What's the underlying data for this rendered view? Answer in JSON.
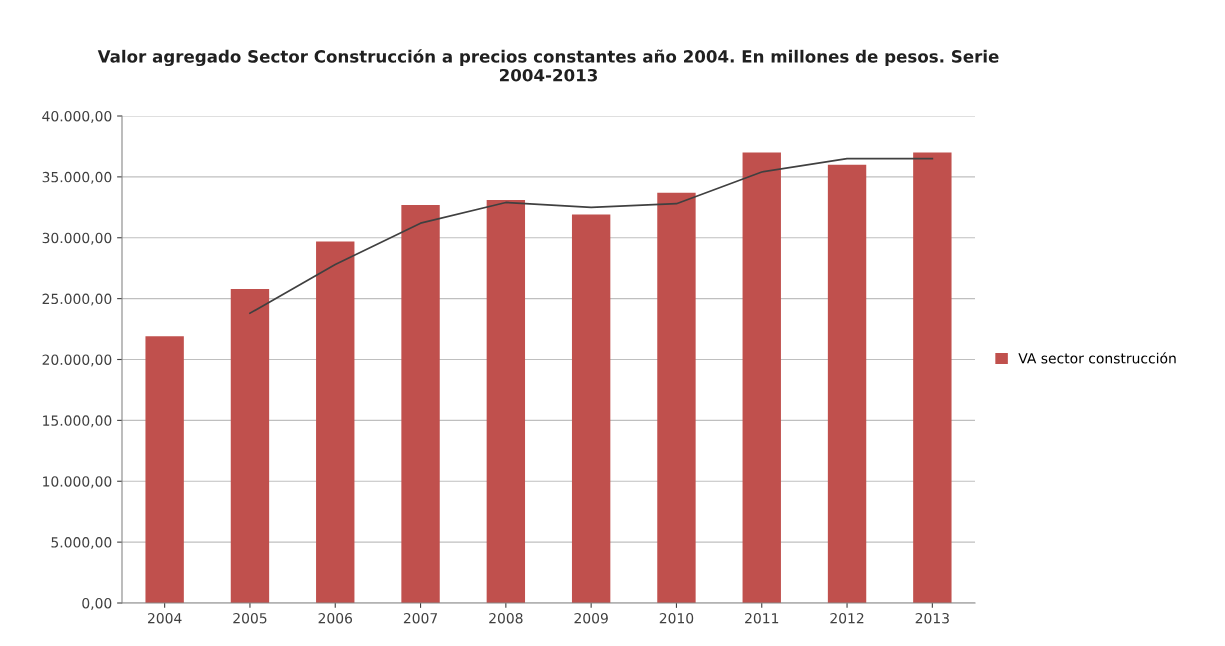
{
  "chart_data": {
    "type": "bar",
    "title": "Valor agregado Sector Construcción a precios constantes año 2004. En millones de pesos. Serie\n2004-2013",
    "categories": [
      "2004",
      "2005",
      "2006",
      "2007",
      "2008",
      "2009",
      "2010",
      "2011",
      "2012",
      "2013"
    ],
    "series": [
      {
        "name": "VA sector construcción",
        "color": "#c0504d",
        "values": [
          21900,
          25800,
          29700,
          32700,
          33100,
          31900,
          33700,
          37000,
          36000,
          37000
        ]
      },
      {
        "type": "line",
        "color": "#404040",
        "values": [
          null,
          23800,
          27800,
          31200,
          32900,
          32500,
          32800,
          35400,
          36500,
          36500
        ]
      }
    ],
    "ylim": [
      0,
      40000
    ],
    "yticks": [
      {
        "value": 0,
        "label": "0,00"
      },
      {
        "value": 5000,
        "label": "5.000,00"
      },
      {
        "value": 10000,
        "label": "10.000,00"
      },
      {
        "value": 15000,
        "label": "15.000,00"
      },
      {
        "value": 20000,
        "label": "20.000,00"
      },
      {
        "value": 25000,
        "label": "25.000,00"
      },
      {
        "value": 30000,
        "label": "30.000,00"
      },
      {
        "value": 35000,
        "label": "35.000,00"
      },
      {
        "value": 40000,
        "label": "40.000,00"
      }
    ],
    "grid": "y",
    "legend": "right"
  }
}
